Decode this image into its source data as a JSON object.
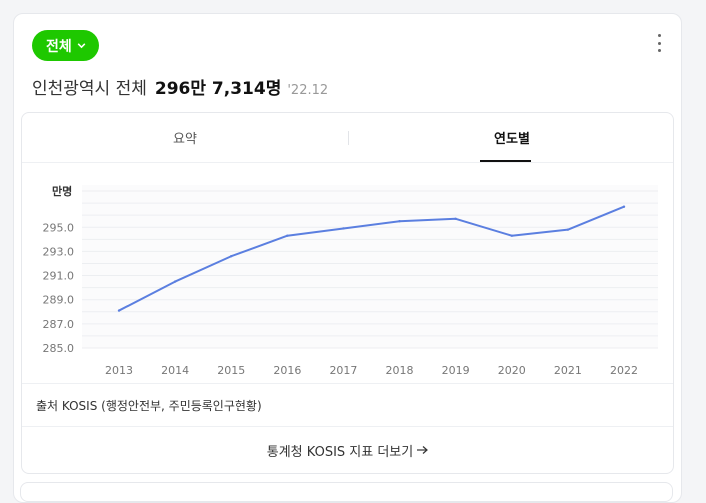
{
  "filter": {
    "label": "전체",
    "icon": "chevron-down-icon"
  },
  "menu": {
    "icon": "more-vertical-icon"
  },
  "headline": {
    "region": "인천광역시 전체",
    "value": "296만 7,314명",
    "date": "'22.12"
  },
  "tabs": [
    {
      "label": "요약",
      "active": false
    },
    {
      "label": "연도별",
      "active": true
    }
  ],
  "chart_data": {
    "type": "line",
    "unit": "만명",
    "categories": [
      "2013",
      "2014",
      "2015",
      "2016",
      "2017",
      "2018",
      "2019",
      "2020",
      "2021",
      "2022"
    ],
    "series": [
      {
        "values": [
          288.1,
          290.5,
          292.6,
          294.3,
          294.9,
          295.5,
          295.7,
          294.3,
          294.8,
          296.7
        ]
      }
    ],
    "yticks": [
      "285.0",
      "287.0",
      "289.0",
      "291.0",
      "293.0",
      "295.0"
    ],
    "ylim": [
      285,
      298.5
    ],
    "grid": true,
    "line_color": "#5b7fe0"
  },
  "source": {
    "text": "출처 KOSIS (행정안전부, 주민등록인구현황)"
  },
  "more": {
    "label": "통계청 KOSIS 지표 더보기",
    "icon": "arrow-right-icon"
  },
  "colors": {
    "accent": "#1ec800"
  }
}
